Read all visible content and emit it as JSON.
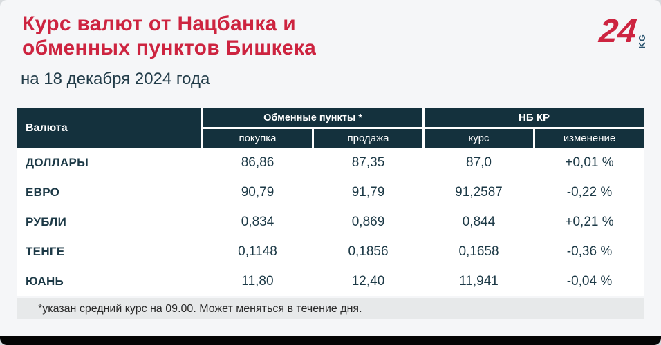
{
  "page": {
    "title": "Курс валют от Нацбанка и\nобменных пунктов Бишкека",
    "date_line": "на 18 декабря 2024 года",
    "footnote": "*указан средний курс на 09.00. Может меняться в течение дня.",
    "logo": {
      "number": "24",
      "suffix": "KG"
    },
    "colors": {
      "accent_red": "#cd2440",
      "header_dark": "#14313d",
      "text_navy": "#1c3946",
      "row_gray": "#e7e9ea",
      "row_light": "#f7f8f9",
      "page_bg": "#f5f6f8",
      "bottom_bar": "#050505"
    }
  },
  "table": {
    "col_currency": "Валюта",
    "group_exchange": "Обменные пункты *",
    "group_nbkr": "НБ КР",
    "sub_buy": "покупка",
    "sub_sell": "продажа",
    "sub_rate": "курс",
    "sub_change": "изменение",
    "rows": [
      {
        "currency": "ДОЛЛАРЫ",
        "buy": "86,86",
        "sell": "87,35",
        "rate": "87,0",
        "change": "+0,01 %"
      },
      {
        "currency": "ЕВРО",
        "buy": "90,79",
        "sell": "91,79",
        "rate": "91,2587",
        "change": "-0,22 %"
      },
      {
        "currency": "РУБЛИ",
        "buy": "0,834",
        "sell": "0,869",
        "rate": "0,844",
        "change": "+0,21 %"
      },
      {
        "currency": "ТЕНГЕ",
        "buy": "0,1148",
        "sell": "0,1856",
        "rate": "0,1658",
        "change": "-0,36 %"
      },
      {
        "currency": "ЮАНЬ",
        "buy": "11,80",
        "sell": "12,40",
        "rate": "11,941",
        "change": "-0,04 %"
      }
    ]
  },
  "chart_data": {
    "type": "table",
    "title": "Курс валют от Нацбанка и обменных пунктов Бишкека",
    "subtitle": "на 18 декабря 2024 года",
    "columns": [
      "Валюта",
      "Обменные пункты * — покупка",
      "Обменные пункты * — продажа",
      "НБ КР — курс",
      "НБ КР — изменение"
    ],
    "rows": [
      [
        "ДОЛЛАРЫ",
        "86,86",
        "87,35",
        "87,0",
        "+0,01 %"
      ],
      [
        "ЕВРО",
        "90,79",
        "91,79",
        "91,2587",
        "-0,22 %"
      ],
      [
        "РУБЛИ",
        "0,834",
        "0,869",
        "0,844",
        "+0,21 %"
      ],
      [
        "ТЕНГЕ",
        "0,1148",
        "0,1856",
        "0,1658",
        "-0,36 %"
      ],
      [
        "ЮАНЬ",
        "11,80",
        "12,40",
        "11,941",
        "-0,04 %"
      ]
    ],
    "footnote": "*указан средний курс на 09.00. Может меняться в течение дня."
  }
}
